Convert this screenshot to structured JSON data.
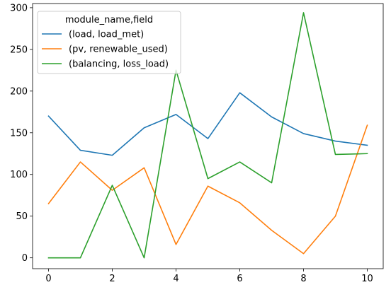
{
  "chart_data": {
    "type": "line",
    "title": "",
    "xlabel": "",
    "ylabel": "",
    "x": [
      0,
      1,
      2,
      3,
      4,
      5,
      6,
      7,
      8,
      9,
      10
    ],
    "xlim": [
      -0.5,
      10.5
    ],
    "ylim": [
      -13,
      305
    ],
    "xticks": [
      0,
      2,
      4,
      6,
      8,
      10
    ],
    "yticks": [
      0,
      50,
      100,
      150,
      200,
      250,
      300
    ],
    "grid": false,
    "legend": {
      "title": "module_name,field",
      "placement": "top-left"
    },
    "series": [
      {
        "name": "(load, load_met)",
        "color": "#1f77b4",
        "values": [
          170,
          129,
          123,
          156,
          172,
          143,
          198,
          169,
          149,
          140,
          135
        ]
      },
      {
        "name": "(pv, renewable_used)",
        "color": "#ff7f0e",
        "values": [
          65,
          115,
          81,
          108,
          16,
          86,
          66,
          33,
          5,
          50,
          159
        ]
      },
      {
        "name": "(balancing, loss_load)",
        "color": "#2ca02c",
        "values": [
          0,
          0,
          87,
          0,
          225,
          95,
          115,
          90,
          294,
          124,
          125
        ]
      }
    ]
  }
}
